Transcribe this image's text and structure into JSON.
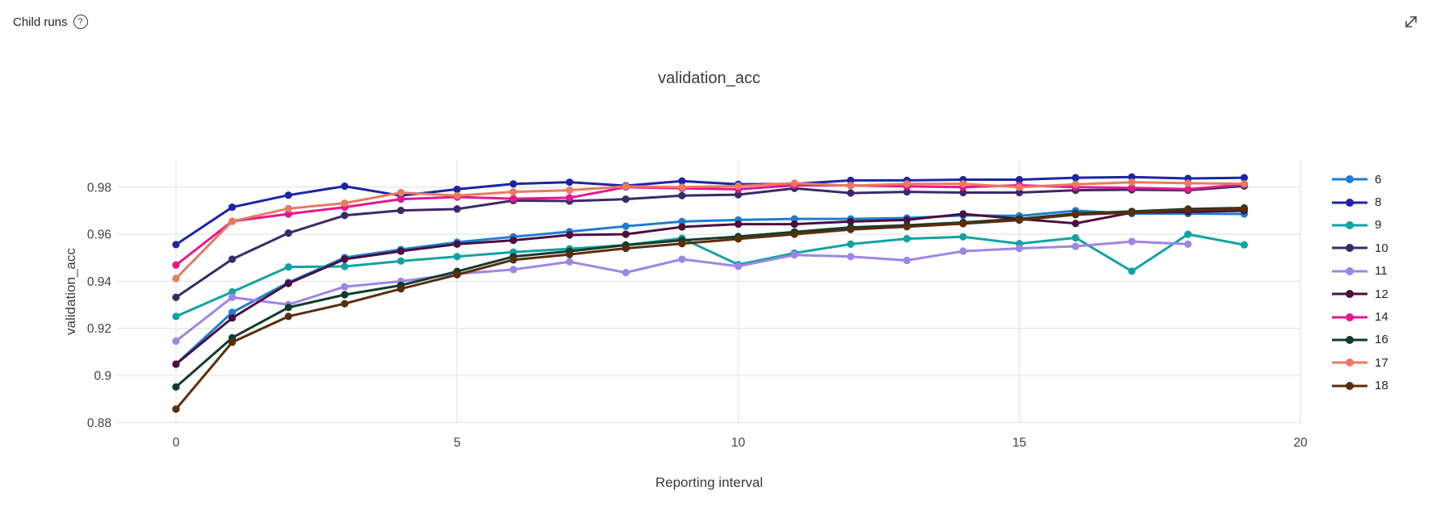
{
  "header": {
    "title": "Child runs",
    "help_glyph": "?"
  },
  "chart_data": {
    "type": "line",
    "title": "validation_acc",
    "xlabel": "Reporting interval",
    "ylabel": "validation_acc",
    "grid": true,
    "legend_position": "right",
    "xlim": [
      -1.05,
      20.05
    ],
    "ylim": [
      0.88,
      0.991
    ],
    "xtick_values": [
      0,
      5,
      10,
      15,
      20
    ],
    "xtick_labels": [
      "0",
      "5",
      "10",
      "15",
      "20"
    ],
    "ytick_values": [
      0.88,
      0.9,
      0.92,
      0.94,
      0.96,
      0.98
    ],
    "ytick_labels": [
      "0.88",
      "0.9",
      "0.92",
      "0.94",
      "0.96",
      "0.98"
    ],
    "x": [
      0,
      1,
      2,
      3,
      4,
      5,
      6,
      7,
      8,
      9,
      10,
      11,
      12,
      13,
      14,
      15,
      16,
      17,
      18,
      19
    ],
    "series": [
      {
        "name": "6",
        "color": "#1d7dd2",
        "values": [
          0.9048,
          0.9268,
          0.9395,
          0.9501,
          0.9535,
          0.9566,
          0.9589,
          0.9611,
          0.9634,
          0.9654,
          0.9661,
          0.9665,
          0.9665,
          0.9669,
          0.968,
          0.9678,
          0.97,
          0.9688,
          0.9688,
          0.9686
        ]
      },
      {
        "name": "8",
        "color": "#1b24a8",
        "values": [
          0.9556,
          0.9715,
          0.9766,
          0.9804,
          0.9764,
          0.9791,
          0.9814,
          0.9821,
          0.9806,
          0.9826,
          0.9812,
          0.9814,
          0.9829,
          0.9829,
          0.9832,
          0.9832,
          0.984,
          0.9843,
          0.9837,
          0.984
        ]
      },
      {
        "name": "9",
        "color": "#11a3a3",
        "values": [
          0.9251,
          0.9355,
          0.9461,
          0.9463,
          0.9486,
          0.9505,
          0.9524,
          0.9538,
          0.9554,
          0.9583,
          0.9471,
          0.952,
          0.9558,
          0.9581,
          0.9589,
          0.956,
          0.9585,
          0.9443,
          0.96,
          0.9555
        ]
      },
      {
        "name": "10",
        "color": "#3a2a66",
        "values": [
          0.9332,
          0.9494,
          0.9605,
          0.968,
          0.9701,
          0.9707,
          0.9743,
          0.9741,
          0.9749,
          0.9764,
          0.9768,
          0.9795,
          0.9775,
          0.978,
          0.9777,
          0.9777,
          0.9787,
          0.9789,
          0.9787,
          0.9805
        ]
      },
      {
        "name": "11",
        "color": "#9e85e6",
        "values": [
          0.9146,
          0.9332,
          0.9301,
          0.9377,
          0.94,
          0.9432,
          0.945,
          0.9483,
          0.9437,
          0.9494,
          0.9464,
          0.9512,
          0.9505,
          0.9489,
          0.9528,
          0.954,
          0.9549,
          0.9569,
          0.9558
        ]
      },
      {
        "name": "12",
        "color": "#4a0e40",
        "values": [
          0.9048,
          0.9244,
          0.9391,
          0.9494,
          0.9528,
          0.9558,
          0.9574,
          0.9597,
          0.96,
          0.9631,
          0.9643,
          0.9643,
          0.9654,
          0.9661,
          0.9686,
          0.9665,
          0.9646,
          0.9692,
          0.9695,
          0.97
        ]
      },
      {
        "name": "14",
        "color": "#e5178e",
        "values": [
          0.9469,
          0.9655,
          0.9686,
          0.9715,
          0.9749,
          0.9758,
          0.9751,
          0.9755,
          0.98,
          0.9795,
          0.9791,
          0.9808,
          0.9808,
          0.9803,
          0.98,
          0.9808,
          0.98,
          0.9797,
          0.9791,
          0.9812
        ]
      },
      {
        "name": "16",
        "color": "#123c2a",
        "values": [
          0.8951,
          0.916,
          0.9289,
          0.9343,
          0.9383,
          0.9442,
          0.9505,
          0.9528,
          0.9554,
          0.9574,
          0.959,
          0.961,
          0.9629,
          0.9638,
          0.965,
          0.9665,
          0.9688,
          0.9697,
          0.9707,
          0.9712
        ]
      },
      {
        "name": "17",
        "color": "#e97a5f",
        "values": [
          0.9412,
          0.9655,
          0.9709,
          0.9732,
          0.9777,
          0.9764,
          0.978,
          0.9787,
          0.9803,
          0.98,
          0.9805,
          0.9817,
          0.9806,
          0.9814,
          0.9814,
          0.98,
          0.9812,
          0.9821,
          0.9817,
          0.9814
        ]
      },
      {
        "name": "18",
        "color": "#5a2d0c",
        "values": [
          0.8857,
          0.9141,
          0.9251,
          0.9305,
          0.9368,
          0.9428,
          0.9491,
          0.9514,
          0.954,
          0.956,
          0.958,
          0.96,
          0.962,
          0.9632,
          0.9645,
          0.966,
          0.9683,
          0.9692,
          0.9703,
          0.9707
        ]
      }
    ]
  }
}
